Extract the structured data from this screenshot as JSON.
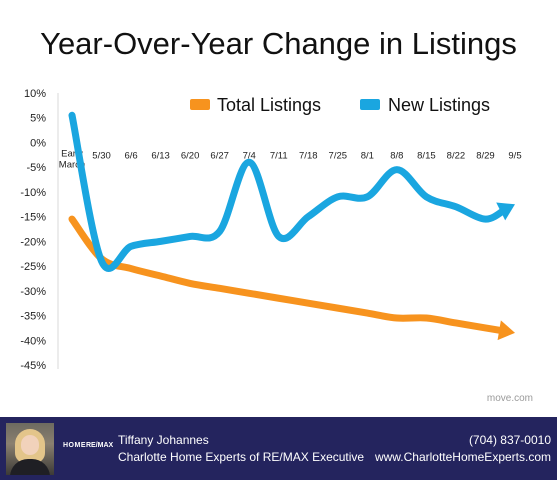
{
  "chart_data": {
    "type": "line",
    "title": "Year-Over-Year Change in Listings",
    "xlabel": "",
    "ylabel": "",
    "categories": [
      "Early March",
      "5/30",
      "6/6",
      "6/13",
      "6/20",
      "6/27",
      "7/4",
      "7/11",
      "7/18",
      "7/25",
      "8/1",
      "8/8",
      "8/15",
      "8/22",
      "8/29",
      "9/5"
    ],
    "y_ticks": [
      "10%",
      "5%",
      "0%",
      "-5%",
      "-10%",
      "-15%",
      "-20%",
      "-25%",
      "-30%",
      "-35%",
      "-40%",
      "-45%"
    ],
    "ylim": [
      -45,
      10
    ],
    "grid": false,
    "legend_position": "top-right",
    "series": [
      {
        "name": "Total Listings",
        "color": "#f7931e",
        "values": [
          -15.5,
          -23.5,
          -25.5,
          -27,
          -28.5,
          -29.5,
          -30.5,
          -31.5,
          -32.5,
          -33.5,
          -34.5,
          -35.5,
          -35.5,
          -36.5,
          -37.5,
          -38.5
        ]
      },
      {
        "name": "New Listings",
        "color": "#1aa6e0",
        "values": [
          5.5,
          -24,
          -21,
          -20,
          -19,
          -18,
          -4,
          -19,
          -15,
          -11,
          -11,
          -5.5,
          -11,
          -13,
          -15.5,
          -12.5
        ]
      }
    ],
    "source": "move.com"
  },
  "footer": {
    "agent_name": "Tiffany Johannes",
    "company": "Charlotte Home Experts of RE/MAX Executive",
    "phone": "(704) 837-0010",
    "website": "www.CharlotteHomeExperts.com",
    "logo_home": "HOME",
    "logo_remax": "RE/MAX"
  }
}
